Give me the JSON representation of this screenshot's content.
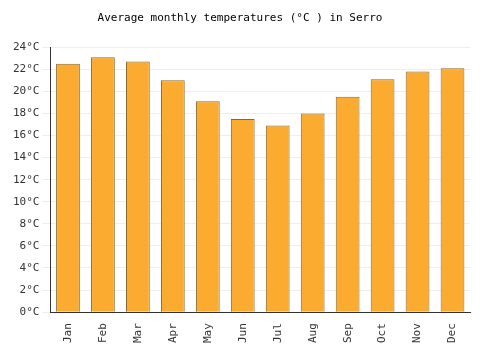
{
  "chart_data": {
    "type": "bar",
    "title": "Average monthly temperatures (°C ) in Serro",
    "categories": [
      "Jan",
      "Feb",
      "Mar",
      "Apr",
      "May",
      "Jun",
      "Jul",
      "Aug",
      "Sep",
      "Oct",
      "Nov",
      "Dec"
    ],
    "values": [
      22.5,
      23.1,
      22.7,
      21.0,
      19.1,
      17.5,
      16.9,
      18.0,
      19.5,
      21.1,
      21.8,
      22.1
    ],
    "color": "#fbab2f",
    "ylim": [
      0,
      24
    ],
    "yticks": [
      {
        "value": 0,
        "label": "0°C"
      },
      {
        "value": 2,
        "label": "2°C"
      },
      {
        "value": 4,
        "label": "4°C"
      },
      {
        "value": 6,
        "label": "6°C"
      },
      {
        "value": 8,
        "label": "8°C"
      },
      {
        "value": 10,
        "label": "10°C"
      },
      {
        "value": 12,
        "label": "12°C"
      },
      {
        "value": 14,
        "label": "14°C"
      },
      {
        "value": 16,
        "label": "16°C"
      },
      {
        "value": 18,
        "label": "18°C"
      },
      {
        "value": 20,
        "label": "20°C"
      },
      {
        "value": 22,
        "label": "22°C"
      },
      {
        "value": 24,
        "label": "24°C"
      }
    ],
    "grid": true
  }
}
